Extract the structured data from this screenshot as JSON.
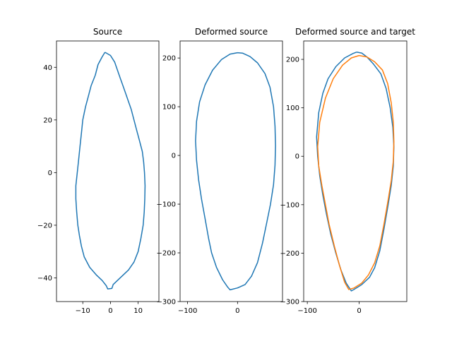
{
  "chart_data": [
    {
      "type": "line",
      "title": "Source",
      "xlim": [
        -19.5,
        17.5
      ],
      "ylim": [
        -49,
        50
      ],
      "xticks": [
        -10,
        0,
        10
      ],
      "yticks": [
        -40,
        -20,
        0,
        20,
        40
      ],
      "grid": false,
      "series": [
        {
          "color": "#1f77b4",
          "points": [
            [
              -2,
              45.7
            ],
            [
              0,
              44.5
            ],
            [
              1.5,
              42
            ],
            [
              2.5,
              39
            ],
            [
              3.5,
              36
            ],
            [
              4.5,
              33
            ],
            [
              5.5,
              30
            ],
            [
              6.5,
              27
            ],
            [
              7.5,
              24
            ],
            [
              8.5,
              20
            ],
            [
              9.5,
              16
            ],
            [
              10.5,
              12
            ],
            [
              11.5,
              8
            ],
            [
              12,
              4
            ],
            [
              12.3,
              0
            ],
            [
              12.5,
              -5
            ],
            [
              12.4,
              -10
            ],
            [
              12.2,
              -15
            ],
            [
              11.8,
              -20
            ],
            [
              11,
              -25
            ],
            [
              10,
              -30
            ],
            [
              8.5,
              -34
            ],
            [
              6.5,
              -37
            ],
            [
              4.5,
              -39
            ],
            [
              2.5,
              -41
            ],
            [
              1,
              -42.5
            ],
            [
              0.5,
              -44
            ],
            [
              -1,
              -44.2
            ],
            [
              -1.5,
              -43
            ],
            [
              -3,
              -41
            ],
            [
              -5,
              -39
            ],
            [
              -7.5,
              -36
            ],
            [
              -9.5,
              -32
            ],
            [
              -10.5,
              -28
            ],
            [
              -11.2,
              -24
            ],
            [
              -11.8,
              -20
            ],
            [
              -12.2,
              -15
            ],
            [
              -12.5,
              -10
            ],
            [
              -12.5,
              -5
            ],
            [
              -12,
              0
            ],
            [
              -11.5,
              5
            ],
            [
              -11,
              10
            ],
            [
              -10.5,
              15
            ],
            [
              -10,
              20
            ],
            [
              -9,
              25
            ],
            [
              -8,
              29
            ],
            [
              -7,
              33
            ],
            [
              -5.5,
              37
            ],
            [
              -4.5,
              41
            ],
            [
              -3,
              44
            ],
            [
              -2,
              45.7
            ]
          ]
        }
      ]
    },
    {
      "type": "line",
      "title": "Deformed source",
      "xlim": [
        -115,
        90
      ],
      "ylim": [
        -300,
        235
      ],
      "xticks": [
        -100,
        0
      ],
      "yticks": [
        -300,
        -200,
        -100,
        0,
        100,
        200
      ],
      "grid": false,
      "series": [
        {
          "color": "#1f77b4",
          "points": [
            [
              0,
              211
            ],
            [
              10,
              210
            ],
            [
              25,
              203
            ],
            [
              40,
              190
            ],
            [
              55,
              168
            ],
            [
              65,
              140
            ],
            [
              72,
              100
            ],
            [
              75,
              60
            ],
            [
              76,
              20
            ],
            [
              75,
              -20
            ],
            [
              72,
              -60
            ],
            [
              66,
              -100
            ],
            [
              58,
              -140
            ],
            [
              50,
              -180
            ],
            [
              40,
              -220
            ],
            [
              28,
              -248
            ],
            [
              15,
              -265
            ],
            [
              0,
              -272
            ],
            [
              -15,
              -276
            ],
            [
              -20,
              -270
            ],
            [
              -30,
              -255
            ],
            [
              -42,
              -230
            ],
            [
              -52,
              -200
            ],
            [
              -58,
              -170
            ],
            [
              -65,
              -130
            ],
            [
              -72,
              -90
            ],
            [
              -78,
              -50
            ],
            [
              -82,
              -10
            ],
            [
              -84,
              30
            ],
            [
              -82,
              70
            ],
            [
              -76,
              110
            ],
            [
              -65,
              145
            ],
            [
              -50,
              175
            ],
            [
              -32,
              197
            ],
            [
              -15,
              208
            ],
            [
              0,
              211
            ]
          ]
        }
      ]
    },
    {
      "type": "line",
      "title": "Deformed source and target",
      "xlim": [
        -107,
        92
      ],
      "ylim": [
        -300,
        238
      ],
      "xticks": [
        -100,
        0
      ],
      "yticks": [
        -300,
        -200,
        -100,
        0,
        100,
        200
      ],
      "grid": false,
      "series": [
        {
          "color": "#1f77b4",
          "points": [
            [
              -5,
              215
            ],
            [
              5,
              213
            ],
            [
              15,
              205
            ],
            [
              28,
              190
            ],
            [
              42,
              170
            ],
            [
              52,
              140
            ],
            [
              60,
              100
            ],
            [
              65,
              60
            ],
            [
              67,
              20
            ],
            [
              66,
              -20
            ],
            [
              62,
              -60
            ],
            [
              56,
              -100
            ],
            [
              48,
              -150
            ],
            [
              40,
              -195
            ],
            [
              30,
              -230
            ],
            [
              20,
              -250
            ],
            [
              5,
              -265
            ],
            [
              -10,
              -275
            ],
            [
              -15,
              -278
            ],
            [
              -25,
              -262
            ],
            [
              -35,
              -235
            ],
            [
              -45,
              -200
            ],
            [
              -55,
              -160
            ],
            [
              -63,
              -120
            ],
            [
              -70,
              -80
            ],
            [
              -76,
              -40
            ],
            [
              -80,
              0
            ],
            [
              -82,
              40
            ],
            [
              -78,
              90
            ],
            [
              -70,
              130
            ],
            [
              -60,
              160
            ],
            [
              -45,
              185
            ],
            [
              -28,
              203
            ],
            [
              -12,
              212
            ],
            [
              -5,
              215
            ]
          ]
        },
        {
          "color": "#ff7f0e",
          "points": [
            [
              0,
              208
            ],
            [
              15,
              205
            ],
            [
              30,
              195
            ],
            [
              45,
              178
            ],
            [
              55,
              150
            ],
            [
              62,
              110
            ],
            [
              66,
              70
            ],
            [
              67,
              30
            ],
            [
              66,
              -10
            ],
            [
              62,
              -50
            ],
            [
              56,
              -90
            ],
            [
              48,
              -140
            ],
            [
              40,
              -185
            ],
            [
              30,
              -220
            ],
            [
              18,
              -245
            ],
            [
              5,
              -262
            ],
            [
              -10,
              -272
            ],
            [
              -20,
              -275
            ],
            [
              -28,
              -260
            ],
            [
              -38,
              -225
            ],
            [
              -48,
              -185
            ],
            [
              -58,
              -140
            ],
            [
              -65,
              -100
            ],
            [
              -72,
              -60
            ],
            [
              -78,
              -20
            ],
            [
              -80,
              20
            ],
            [
              -76,
              70
            ],
            [
              -65,
              120
            ],
            [
              -50,
              160
            ],
            [
              -32,
              188
            ],
            [
              -15,
              203
            ],
            [
              0,
              208
            ]
          ]
        }
      ]
    }
  ]
}
